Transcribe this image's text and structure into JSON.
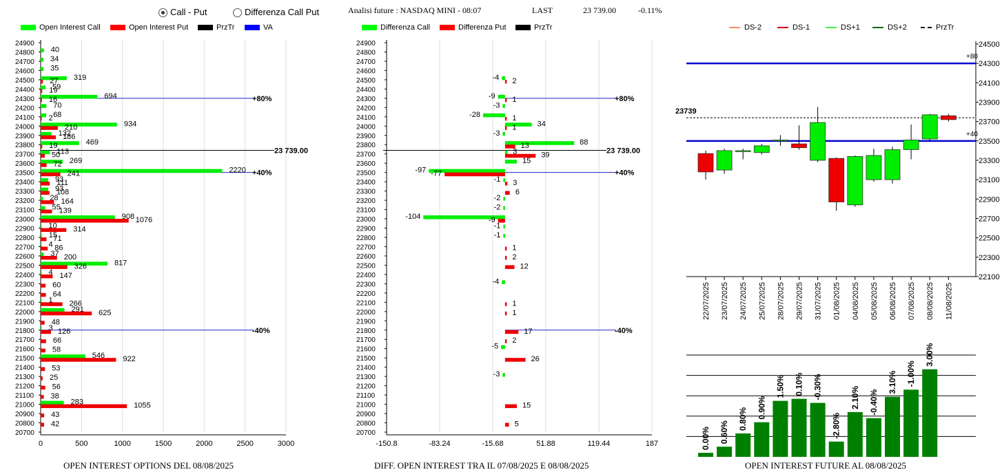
{
  "header": {
    "radio_call_put": "Call - Put",
    "radio_diff": "Differenza Call Put",
    "title": "Analisi future : NASDAQ MINI - 08:07",
    "last_label": "LAST",
    "last_value": "23 739.00",
    "change": "-0.11%"
  },
  "legends": {
    "left": [
      {
        "label": "Open Interest Call",
        "color": "#00ff00"
      },
      {
        "label": "Open Interest Put",
        "color": "#ff0000"
      },
      {
        "label": "PrzTr",
        "color": "#000000"
      },
      {
        "label": "VA",
        "color": "#0000ff"
      }
    ],
    "middle": [
      {
        "label": "Differenza Call",
        "color": "#00ff00"
      },
      {
        "label": "Differenza Put",
        "color": "#ff0000"
      },
      {
        "label": "PrzTr",
        "color": "#000000"
      }
    ],
    "right": [
      {
        "label": "DS-2",
        "color": "#ff8c5a"
      },
      {
        "label": "DS-1",
        "color": "#dd0000"
      },
      {
        "label": "DS+1",
        "color": "#44ee44"
      },
      {
        "label": "DS+2",
        "color": "#006600"
      },
      {
        "label": "PrzTr",
        "color": "#000000"
      }
    ]
  },
  "captions": {
    "left": "OPEN INTEREST OPTIONS DEL 08/08/2025",
    "middle": "DIFF. OPEN INTEREST TRA IL 07/08/2025 E 08/08/2025",
    "right": "OPEN INTEREST FUTURE AL 08/08/2025"
  },
  "chart_data": [
    {
      "type": "bar",
      "orientation": "horizontal",
      "strikes": [
        24900,
        24800,
        24700,
        24600,
        24500,
        24400,
        24300,
        24200,
        24100,
        24000,
        23900,
        23800,
        23700,
        23600,
        23500,
        23400,
        23300,
        23200,
        23100,
        23000,
        22900,
        22800,
        22700,
        22600,
        22500,
        22400,
        22300,
        22200,
        22100,
        22000,
        21900,
        21800,
        21700,
        21600,
        21500,
        21400,
        21300,
        21200,
        21100,
        21000,
        20900,
        20800,
        20700
      ],
      "series": [
        {
          "name": "Open Interest Call",
          "values": [
            null,
            40,
            34,
            35,
            319,
            59,
            694,
            70,
            68,
            934,
            132,
            469,
            113,
            269,
            2220,
            93,
            93,
            28,
            55,
            908,
            10,
            15,
            4,
            37,
            817,
            4,
            null,
            null,
            1,
            291,
            null,
            3,
            null,
            null,
            546,
            null,
            null,
            null,
            null,
            283,
            null,
            null,
            null
          ]
        },
        {
          "name": "Open Interest Put",
          "values": [
            null,
            null,
            null,
            null,
            27,
            19,
            16,
            null,
            2,
            210,
            186,
            19,
            50,
            72,
            241,
            111,
            108,
            164,
            139,
            1076,
            314,
            71,
            86,
            200,
            326,
            147,
            60,
            64,
            266,
            625,
            48,
            126,
            66,
            58,
            922,
            53,
            25,
            56,
            38,
            1055,
            43,
            42,
            null
          ]
        }
      ],
      "xlim": [
        0,
        3000
      ],
      "xticks": [
        0,
        500,
        1000,
        1500,
        2000,
        2500,
        3000
      ],
      "prztr": 23739,
      "prztr_label": "23 739.00",
      "va_lines": [
        {
          "strike": 24300,
          "label": "+80%"
        },
        {
          "strike": 23500,
          "label": "+40%"
        },
        {
          "strike": 21800,
          "label": "-40%"
        }
      ]
    },
    {
      "type": "bar",
      "orientation": "horizontal",
      "strikes": [
        24900,
        24800,
        24700,
        24600,
        24500,
        24400,
        24300,
        24200,
        24100,
        24000,
        23900,
        23800,
        23700,
        23600,
        23500,
        23400,
        23300,
        23200,
        23100,
        23000,
        22900,
        22800,
        22700,
        22600,
        22500,
        22400,
        22300,
        22200,
        22100,
        22000,
        21900,
        21800,
        21700,
        21600,
        21500,
        21400,
        21300,
        21200,
        21100,
        21000,
        20900,
        20800,
        20700
      ],
      "series": [
        {
          "name": "Differenza Call",
          "values": [
            null,
            null,
            null,
            null,
            -4,
            null,
            -9,
            -3,
            -28,
            34,
            -3,
            88,
            3,
            15,
            -97,
            -1,
            null,
            -2,
            -2,
            -104,
            -1,
            -1,
            null,
            null,
            null,
            null,
            -4,
            null,
            null,
            null,
            null,
            null,
            null,
            -5,
            null,
            null,
            -3,
            null,
            null,
            null,
            null,
            null,
            null
          ]
        },
        {
          "name": "Differenza Put",
          "values": [
            null,
            null,
            null,
            null,
            2,
            null,
            1,
            null,
            1,
            1,
            null,
            13,
            39,
            null,
            -77,
            3,
            6,
            null,
            null,
            -9,
            null,
            null,
            1,
            2,
            12,
            null,
            null,
            null,
            1,
            1,
            null,
            17,
            2,
            null,
            26,
            null,
            null,
            null,
            null,
            15,
            null,
            5,
            null
          ]
        }
      ],
      "xlim": [
        -150.8,
        187
      ],
      "xticks": [
        "-150.8",
        "-83.24",
        "-15.68",
        "51.88",
        "119.44",
        "187"
      ],
      "prztr": 23739,
      "prztr_label": "23 739.00",
      "va_lines": [
        {
          "strike": 24300,
          "label": "+80%"
        },
        {
          "strike": 23500,
          "label": "+40%"
        },
        {
          "strike": 21800,
          "label": "-40%"
        }
      ]
    },
    {
      "type": "candlestick",
      "dates": [
        "22/07/2025",
        "23/07/2025",
        "24/07/2025",
        "25/07/2025",
        "28/07/2025",
        "29/07/2025",
        "31/07/2025",
        "01/08/2025",
        "04/08/2025",
        "05/08/2025",
        "06/08/2025",
        "07/08/2025",
        "08/08/2025",
        "11/08/2025"
      ],
      "open": [
        23370,
        23200,
        23400,
        23380,
        23500,
        23470,
        23300,
        23320,
        22840,
        23100,
        23100,
        23410,
        23520,
        23760
      ],
      "close": [
        23180,
        23400,
        23400,
        23450,
        23510,
        23430,
        23690,
        22870,
        23340,
        23350,
        23410,
        23510,
        23770,
        23720
      ],
      "high": [
        23400,
        23420,
        23420,
        23470,
        23560,
        23660,
        23850,
        23330,
        23350,
        23420,
        23440,
        23670,
        23780,
        23780
      ],
      "low": [
        23100,
        23160,
        23310,
        23360,
        23450,
        23410,
        23280,
        22780,
        22820,
        23080,
        23060,
        23310,
        23500,
        23700
      ],
      "ylim": [
        22100,
        24500
      ],
      "yticks": [
        22100,
        22300,
        22500,
        22700,
        22900,
        23100,
        23300,
        23500,
        23700,
        23900,
        24100,
        24300,
        24500
      ],
      "prztr": 23739,
      "prztr_label": "23739",
      "levels": [
        {
          "value": 24300,
          "label": "+80"
        },
        {
          "value": 23500,
          "label": "+40"
        }
      ]
    },
    {
      "type": "bar",
      "categories": [
        "22/07/2025",
        "23/07/2025",
        "24/07/2025",
        "25/07/2025",
        "28/07/2025",
        "29/07/2025",
        "31/07/2025",
        "01/08/2025",
        "04/08/2025",
        "05/08/2025",
        "06/08/2025",
        "07/08/2025",
        "08/08/2025",
        "11/08/2025"
      ],
      "values": [
        0.4,
        1.0,
        2.3,
        3.4,
        5.5,
        5.7,
        5.3,
        1.5,
        4.4,
        3.8,
        5.9,
        6.6,
        8.6,
        null
      ],
      "labels": [
        "0.00%",
        "0.60%",
        "0.80%",
        "0.90%",
        "1.50%",
        "0.10%",
        "-0.30%",
        "-2.80%",
        "2.10%",
        "-0.40%",
        "3.10%",
        "-1.00%",
        "3.00%",
        ""
      ],
      "ylim": [
        0,
        10
      ],
      "color": "#008000"
    }
  ]
}
